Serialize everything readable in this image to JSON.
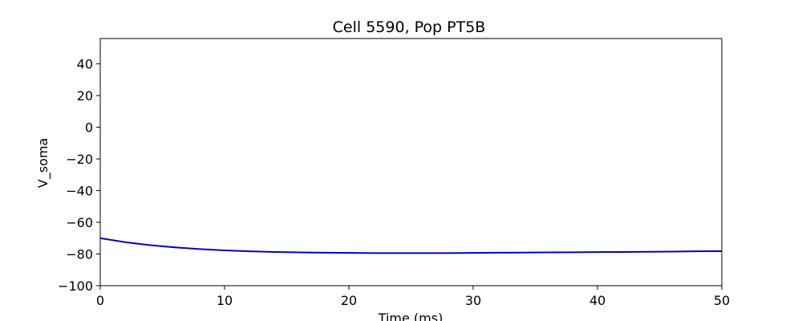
{
  "chart_data": {
    "type": "line",
    "title": "Cell 5590, Pop PT5B",
    "xlabel": "Time (ms)",
    "ylabel": "V_soma",
    "xlim": [
      0,
      50
    ],
    "ylim": [
      -100,
      56
    ],
    "x_ticks": [
      0,
      10,
      20,
      30,
      40,
      50
    ],
    "x_tick_labels": [
      "0",
      "10",
      "20",
      "30",
      "40",
      "50"
    ],
    "y_ticks": [
      -100,
      -80,
      -60,
      -40,
      -20,
      0,
      20,
      40
    ],
    "y_tick_labels": [
      "−100",
      "−80",
      "−60",
      "−40",
      "−20",
      "0",
      "20",
      "40"
    ],
    "grid": false,
    "series": [
      {
        "color": "#0000cc",
        "x": [
          0,
          2,
          4,
          6,
          8,
          10,
          12,
          14,
          16,
          18,
          20,
          22,
          24,
          26,
          28,
          30,
          32,
          34,
          36,
          38,
          40,
          42,
          44,
          46,
          48,
          50
        ],
        "values": [
          -70.0,
          -72.5,
          -74.4,
          -75.8,
          -76.9,
          -77.7,
          -78.3,
          -78.7,
          -79.0,
          -79.2,
          -79.3,
          -79.4,
          -79.45,
          -79.45,
          -79.4,
          -79.3,
          -79.2,
          -79.1,
          -79.0,
          -78.9,
          -78.8,
          -78.7,
          -78.6,
          -78.45,
          -78.3,
          -78.2
        ]
      }
    ]
  }
}
